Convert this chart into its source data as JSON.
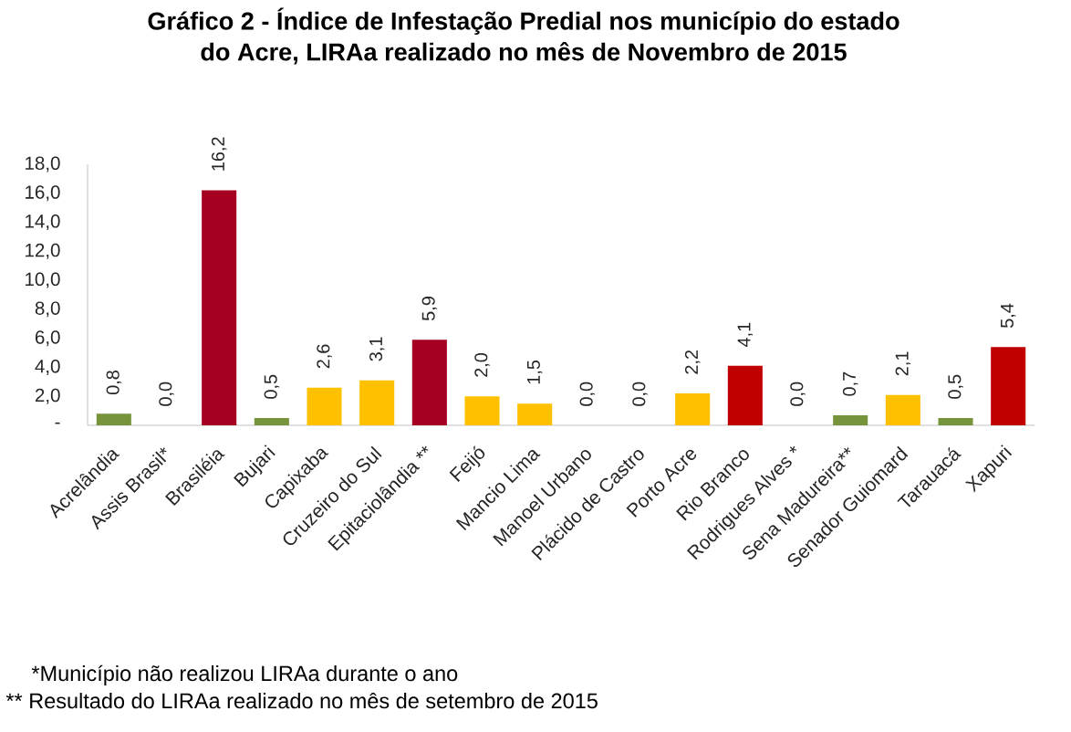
{
  "chart_data": {
    "type": "bar",
    "title": "Gráfico 2 - Índice de Infestação Predial nos município do estado do Acre, LIRAa realizado no mês de Novembro de 2015",
    "categories": [
      "Acrelândia",
      "Assis Brasil*",
      "Brasiléia",
      "Bujari",
      "Capixaba",
      "Cruzeiro do Sul",
      "Epitaciolândia **",
      "Feijó",
      "Mancio Lima",
      "Manoel Urbano",
      "Plácido de Castro",
      "Porto Acre",
      "Rio Branco",
      "Rodrigues Alves *",
      "Sena Madureira**",
      "Senador Guiomard",
      "Tarauacá",
      "Xapuri"
    ],
    "values": [
      0.8,
      0.0,
      16.2,
      0.5,
      2.6,
      3.1,
      5.9,
      2.0,
      1.5,
      0.0,
      0.0,
      2.2,
      4.1,
      0.0,
      0.7,
      2.1,
      0.5,
      5.4
    ],
    "colors": [
      "#77933c",
      null,
      "#a50021",
      "#77933c",
      "#ffc000",
      "#ffc000",
      "#a50021",
      "#ffc000",
      "#ffc000",
      null,
      null,
      "#ffc000",
      "#c00000",
      null,
      "#77933c",
      "#ffc000",
      "#77933c",
      "#c00000"
    ],
    "value_labels": [
      "0,8",
      "0,0",
      "16,2",
      "0,5",
      "2,6",
      "3,1",
      "5,9",
      "2,0",
      "1,5",
      "0,0",
      "0,0",
      "2,2",
      "4,1",
      "0,0",
      "0,7",
      "2,1",
      "0,5",
      "5,4"
    ],
    "ylim": [
      0,
      18
    ],
    "yticks": [
      {
        "value": 0,
        "label": "-"
      },
      {
        "value": 2,
        "label": "2,0"
      },
      {
        "value": 4,
        "label": "4,0"
      },
      {
        "value": 6,
        "label": "6,0"
      },
      {
        "value": 8,
        "label": "8,0"
      },
      {
        "value": 10,
        "label": "10,0"
      },
      {
        "value": 12,
        "label": "12,0"
      },
      {
        "value": 14,
        "label": "14,0"
      },
      {
        "value": 16,
        "label": "16,0"
      },
      {
        "value": 18,
        "label": "18,0"
      }
    ],
    "annotations": [
      "*Município não realizou LIRAa durante o ano",
      "** Resultado do LIRAa realizado no mês de setembro de 2015"
    ]
  }
}
